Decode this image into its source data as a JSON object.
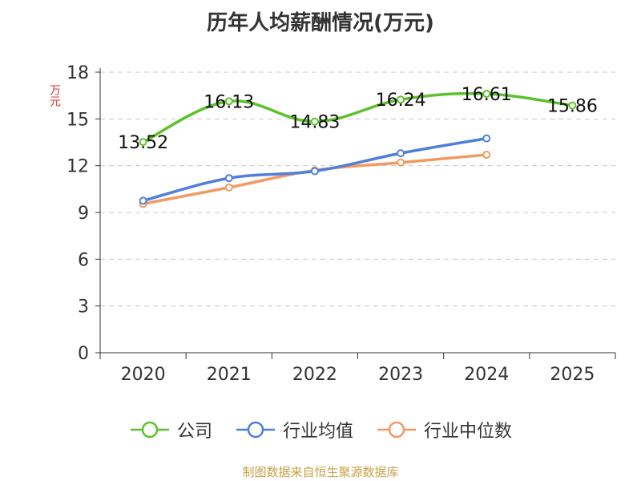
{
  "chart_data": {
    "type": "line",
    "title": "历年人均薪酬情况(万元)",
    "ylabel": "万元",
    "xlabel": "",
    "categories": [
      "2020",
      "2021",
      "2022",
      "2023",
      "2024",
      "2025"
    ],
    "ylim": [
      0,
      18
    ],
    "yticks": [
      0,
      3,
      6,
      9,
      12,
      15,
      18
    ],
    "grid": true,
    "legend_position": "bottom",
    "series": [
      {
        "name": "公司",
        "color": "#5cc12b",
        "values": [
          13.52,
          16.13,
          14.83,
          16.24,
          16.61,
          15.86
        ],
        "labels": [
          "13.52",
          "16.13",
          "14.83",
          "16.24",
          "16.61",
          "15.86"
        ]
      },
      {
        "name": "行业均值",
        "color": "#4f7fdc",
        "values": [
          9.75,
          11.2,
          11.65,
          12.8,
          13.75,
          null
        ]
      },
      {
        "name": "行业中位数",
        "color": "#f39a62",
        "values": [
          9.55,
          10.6,
          11.7,
          12.2,
          12.7,
          null
        ]
      }
    ]
  },
  "source": "制图数据来自恒生聚源数据库"
}
